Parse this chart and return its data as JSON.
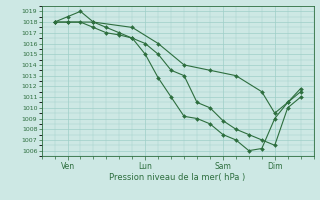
{
  "title": "Pression niveau de la mer( hPa )",
  "ylabel_ticks": [
    1006,
    1007,
    1008,
    1009,
    1010,
    1011,
    1012,
    1013,
    1014,
    1015,
    1016,
    1017,
    1018,
    1019
  ],
  "ylim": [
    1005.5,
    1019.5
  ],
  "background_color": "#cde8e4",
  "grid_color": "#9ecfc8",
  "line_color": "#2d6e3e",
  "xtick_labels": [
    "Ven",
    "Lun",
    "Sam",
    "Dim"
  ],
  "xtick_positions": [
    1,
    4,
    7,
    9
  ],
  "xlim": [
    0,
    10.5
  ],
  "series1": {
    "x": [
      0.5,
      1.0,
      1.5,
      2.0,
      2.5,
      3.0,
      3.5,
      4.0,
      4.5,
      5.0,
      5.5,
      6.0,
      6.5,
      7.0,
      7.5,
      8.0,
      8.5,
      9.0,
      9.5,
      10.0
    ],
    "y": [
      1018,
      1018.5,
      1019,
      1018,
      1017.5,
      1017,
      1016.5,
      1015,
      1012.8,
      1011,
      1009.2,
      1009,
      1008.5,
      1007.5,
      1007,
      1006,
      1006.2,
      1009,
      1010.5,
      1011.8
    ]
  },
  "series2": {
    "x": [
      0.5,
      1.0,
      1.5,
      2.0,
      2.5,
      3.0,
      3.5,
      4.0,
      4.5,
      5.0,
      5.5,
      6.0,
      6.5,
      7.0,
      7.5,
      8.0,
      8.5,
      9.0,
      9.5,
      10.0
    ],
    "y": [
      1018,
      1018,
      1018,
      1017.5,
      1017,
      1016.8,
      1016.5,
      1016,
      1015,
      1013.5,
      1013,
      1010.5,
      1010,
      1008.8,
      1008,
      1007.5,
      1007,
      1006.5,
      1010,
      1011
    ]
  },
  "series3": {
    "x": [
      0.5,
      1.0,
      2.0,
      3.5,
      4.5,
      5.5,
      6.5,
      7.5,
      8.5,
      9.0,
      9.5,
      10.0
    ],
    "y": [
      1018,
      1018,
      1018,
      1017.5,
      1016,
      1014,
      1013.5,
      1013,
      1011.5,
      1009.5,
      1010.5,
      1011.5
    ]
  }
}
